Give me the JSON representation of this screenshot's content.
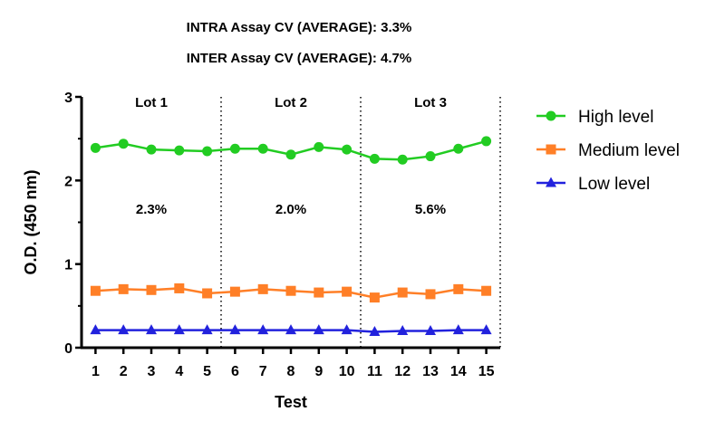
{
  "header": {
    "intra": "INTRA Assay CV (AVERAGE): 3.3%",
    "inter": "INTER Assay CV (AVERAGE): 4.7%"
  },
  "chart_data": {
    "type": "line",
    "title": "",
    "xlabel": "Test",
    "ylabel": "O.D. (450 nm)",
    "x": [
      1,
      2,
      3,
      4,
      5,
      6,
      7,
      8,
      9,
      10,
      11,
      12,
      13,
      14,
      15
    ],
    "xlim": [
      0.5,
      15.5
    ],
    "ylim": [
      0,
      3
    ],
    "yticks": [
      0,
      1,
      2,
      3
    ],
    "legend_position": "right",
    "grid": false,
    "lot_boundaries": [
      5.5,
      10.5,
      15.5
    ],
    "lots": [
      {
        "label": "Lot 1",
        "cv": "2.3%",
        "center": 3
      },
      {
        "label": "Lot 2",
        "cv": "2.0%",
        "center": 8
      },
      {
        "label": "Lot 3",
        "cv": "5.6%",
        "center": 13
      }
    ],
    "series": [
      {
        "name": "High level",
        "color": "#22cc22",
        "marker": "circle",
        "values": [
          2.39,
          2.44,
          2.37,
          2.36,
          2.35,
          2.38,
          2.38,
          2.31,
          2.4,
          2.37,
          2.26,
          2.25,
          2.29,
          2.38,
          2.47
        ]
      },
      {
        "name": "Medium level",
        "color": "#ff7f27",
        "marker": "square",
        "values": [
          0.68,
          0.7,
          0.69,
          0.71,
          0.65,
          0.67,
          0.7,
          0.68,
          0.66,
          0.67,
          0.6,
          0.66,
          0.64,
          0.7,
          0.68
        ]
      },
      {
        "name": "Low level",
        "color": "#2222dd",
        "marker": "triangle",
        "values": [
          0.21,
          0.21,
          0.21,
          0.21,
          0.21,
          0.21,
          0.21,
          0.21,
          0.21,
          0.21,
          0.19,
          0.2,
          0.2,
          0.21,
          0.21
        ]
      }
    ]
  }
}
